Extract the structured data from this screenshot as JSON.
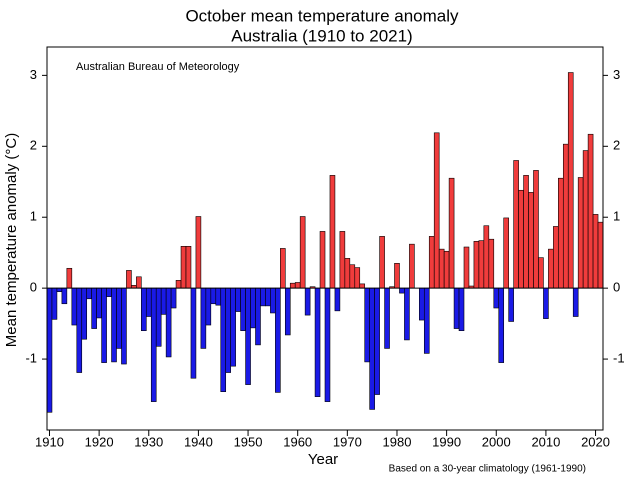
{
  "chart_data": {
    "type": "bar",
    "title": "October mean temperature anomaly",
    "subtitle": "Australia (1910 to 2021)",
    "annotations": [
      "Australian Bureau of Meteorology",
      "Based on a 30-year climatology (1961-1990)"
    ],
    "xlabel": "Year",
    "ylabel": "Mean temperature anomaly (°C)",
    "x_start": 1910,
    "values": [
      -1.75,
      -0.44,
      -0.05,
      -0.22,
      0.28,
      -0.52,
      -1.19,
      -0.72,
      -0.15,
      -0.57,
      -0.42,
      -1.05,
      -0.12,
      -1.04,
      -0.85,
      -1.07,
      0.25,
      0.04,
      0.16,
      -0.6,
      -0.4,
      -1.6,
      -0.82,
      -0.37,
      -0.97,
      -0.28,
      0.11,
      0.59,
      0.59,
      -1.27,
      1.01,
      -0.85,
      -0.52,
      -0.22,
      -0.24,
      -1.46,
      -1.19,
      -1.1,
      -0.33,
      -0.6,
      -1.36,
      -0.56,
      -0.8,
      -0.25,
      -0.25,
      -0.35,
      -1.47,
      0.56,
      -0.66,
      0.07,
      0.08,
      1.01,
      -0.38,
      0.02,
      -1.53,
      0.8,
      -1.6,
      1.59,
      -0.32,
      0.8,
      0.42,
      0.33,
      0.29,
      0.06,
      -1.04,
      -1.71,
      -1.5,
      0.73,
      -0.85,
      0.02,
      0.35,
      -0.07,
      -0.73,
      0.62,
      0.0,
      -0.45,
      -0.92,
      0.73,
      2.19,
      0.55,
      0.52,
      1.55,
      -0.57,
      -0.6,
      0.58,
      0.03,
      0.66,
      0.67,
      0.88,
      0.69,
      -0.28,
      -1.05,
      0.99,
      -0.47,
      1.8,
      1.38,
      1.59,
      1.35,
      1.66,
      0.43,
      -0.43,
      0.55,
      0.87,
      1.55,
      2.03,
      3.04,
      -0.4,
      1.56,
      1.94,
      2.17,
      1.04,
      0.93
    ],
    "positive_color": "#f03c3c",
    "negative_color": "#1a1ae6",
    "xlim": [
      1909.5,
      2021.5
    ],
    "xticks": [
      1910,
      1920,
      1930,
      1940,
      1950,
      1960,
      1970,
      1980,
      1990,
      2000,
      2010,
      2020
    ],
    "ylim": [
      -2,
      3.4
    ],
    "yticks": [
      -1,
      0,
      1,
      2,
      3
    ]
  }
}
